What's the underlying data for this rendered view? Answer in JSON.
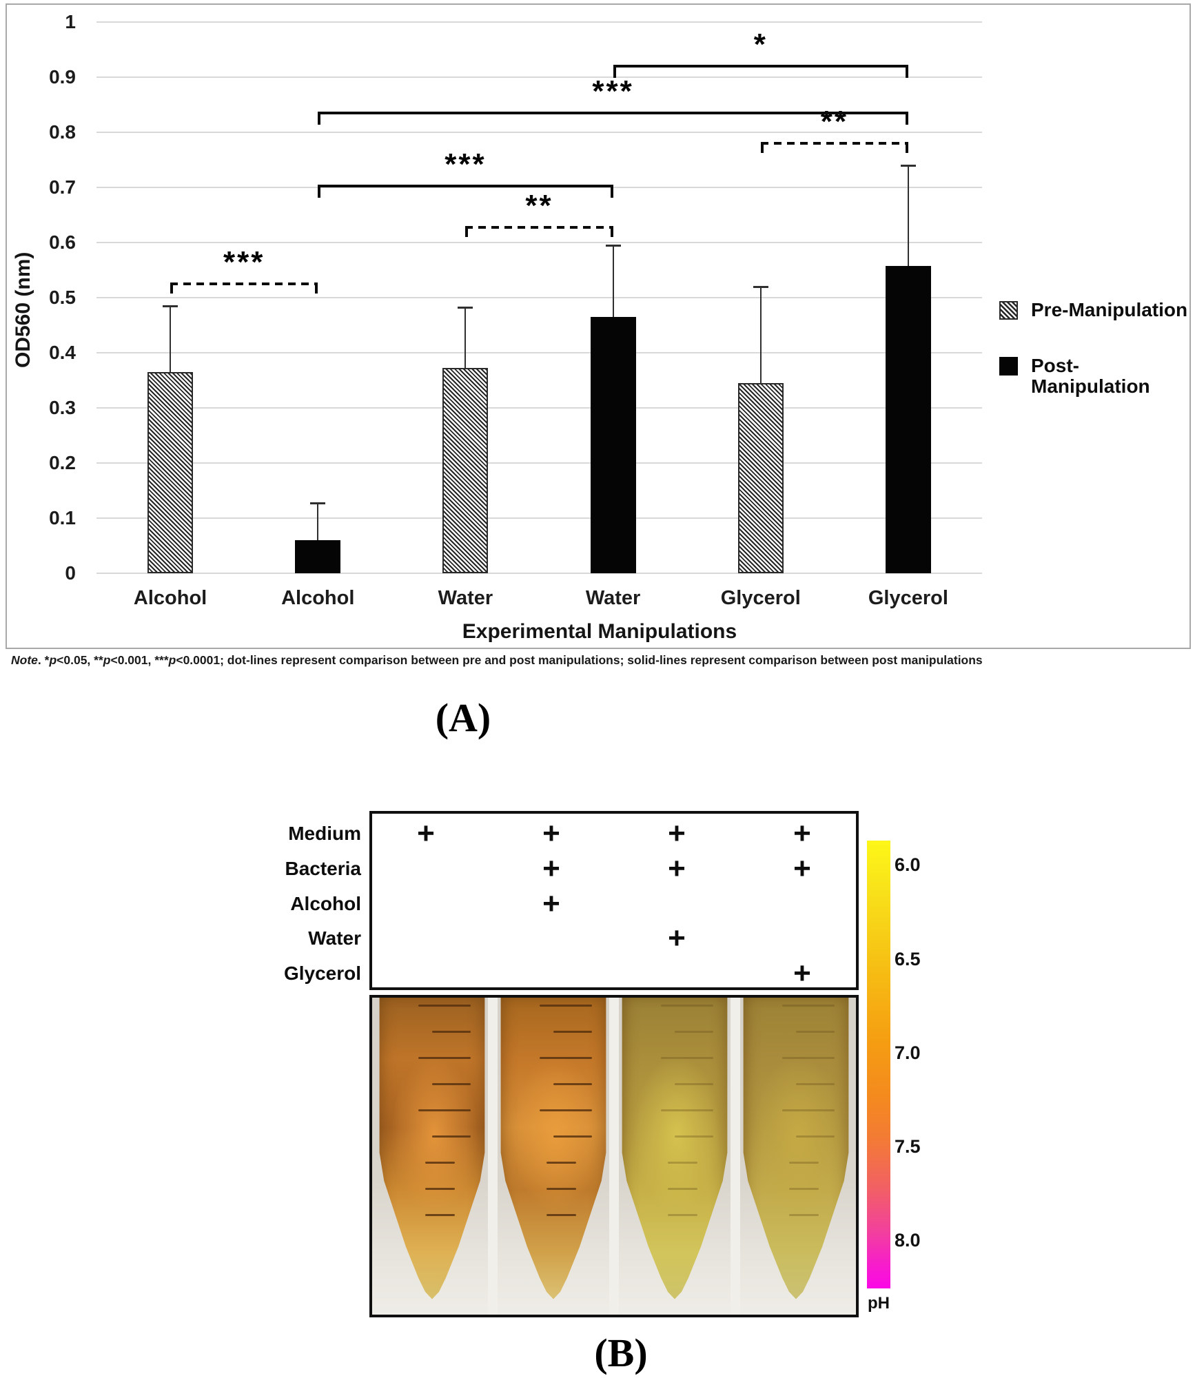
{
  "figure": {
    "panel_a_label": "(A)",
    "panel_b_label": "(B)"
  },
  "note": {
    "parts": [
      {
        "t": "Note",
        "i": true
      },
      {
        "t": ". *",
        "i": false
      },
      {
        "t": "p",
        "i": true
      },
      {
        "t": "<0.05, **",
        "i": false
      },
      {
        "t": "p",
        "i": true
      },
      {
        "t": "<0.001, ***",
        "i": false
      },
      {
        "t": "p",
        "i": true
      },
      {
        "t": "<0.0001; dot-lines represent comparison between pre and post manipulations; solid-lines represent comparison between post manipulations",
        "i": false
      }
    ]
  },
  "chart_data": {
    "type": "bar",
    "title": "",
    "xlabel": "Experimental Manipulations",
    "ylabel": "OD560 (nm)",
    "ylim": [
      0,
      1
    ],
    "ytick_step": 0.1,
    "ytick_labels": [
      "0",
      "0.1",
      "0.2",
      "0.3",
      "0.4",
      "0.5",
      "0.6",
      "0.7",
      "0.8",
      "0.9",
      "1"
    ],
    "grid": "horizontal",
    "legend_position": "right",
    "categories": [
      "Alcohol",
      "Alcohol",
      "Water",
      "Water",
      "Glycerol",
      "Glycerol"
    ],
    "bars": [
      {
        "category": "Alcohol",
        "group": "Pre-Manipulation",
        "value": 0.365,
        "error_top": 0.485
      },
      {
        "category": "Alcohol",
        "group": "Post-Manipulation",
        "value": 0.06,
        "error_top": 0.128
      },
      {
        "category": "Water",
        "group": "Pre-Manipulation",
        "value": 0.372,
        "error_top": 0.482
      },
      {
        "category": "Water",
        "group": "Post-Manipulation",
        "value": 0.465,
        "error_top": 0.595
      },
      {
        "category": "Glycerol",
        "group": "Pre-Manipulation",
        "value": 0.345,
        "error_top": 0.52
      },
      {
        "category": "Glycerol",
        "group": "Post-Manipulation",
        "value": 0.558,
        "error_top": 0.74
      }
    ],
    "significance_brackets": [
      {
        "from_bar": 0,
        "to_bar": 1,
        "height": 0.528,
        "style": "dashed",
        "label": "***"
      },
      {
        "from_bar": 2,
        "to_bar": 3,
        "height": 0.63,
        "style": "dashed",
        "label": "**"
      },
      {
        "from_bar": 4,
        "to_bar": 5,
        "height": 0.782,
        "style": "dashed",
        "label": "**"
      },
      {
        "from_bar": 1,
        "to_bar": 3,
        "height": 0.705,
        "style": "solid",
        "label": "***"
      },
      {
        "from_bar": 1,
        "to_bar": 5,
        "height": 0.838,
        "style": "solid",
        "label": "***"
      },
      {
        "from_bar": 3,
        "to_bar": 5,
        "height": 0.922,
        "style": "solid",
        "label": "*"
      }
    ],
    "legend": [
      {
        "label": "Pre-Manipulation",
        "style": "hatch"
      },
      {
        "label": "Post-Manipulation",
        "style": "solid"
      }
    ],
    "colors": {
      "bar_post": "#050505",
      "hatch_line": "#242424",
      "gridline": "#d9d9d9",
      "panel_border": "#a8a8a8"
    }
  },
  "panel_b": {
    "condition_table": {
      "row_labels": [
        "Medium",
        "Bacteria",
        "Alcohol",
        "Water",
        "Glycerol"
      ],
      "columns": 4,
      "plus_symbol": "+",
      "plus_marks": [
        [
          1,
          1,
          1,
          1
        ],
        [
          0,
          1,
          1,
          1
        ],
        [
          0,
          1,
          0,
          0
        ],
        [
          0,
          0,
          1,
          0
        ],
        [
          0,
          0,
          0,
          1
        ]
      ]
    },
    "tubes": [
      {
        "name": "medium-only",
        "ticks": "dark",
        "streak": "#f2a040",
        "colors": [
          "#9b6121",
          "#bf7529",
          "#aa6523",
          "#cd8a32",
          "#dfb154",
          "#d8bf69"
        ]
      },
      {
        "name": "bacteria-alcohol",
        "ticks": "dark",
        "streak": "#efa03d",
        "colors": [
          "#a5671f",
          "#c47829",
          "#d68f38",
          "#bf7b2c",
          "#d1a14a",
          "#dbc071"
        ]
      },
      {
        "name": "bacteria-water",
        "ticks": "faint",
        "streak": "#dccb52",
        "colors": [
          "#998035",
          "#aa8e3b",
          "#b79d40",
          "#c6b047",
          "#d2c55b",
          "#cec369"
        ]
      },
      {
        "name": "bacteria-glycerol",
        "ticks": "faint",
        "streak": "#c9ad45",
        "colors": [
          "#9b8135",
          "#a98c3c",
          "#b49941",
          "#c2aa4a",
          "#cabc5e",
          "#cbc172"
        ]
      }
    ],
    "ph_scale": {
      "tick_labels": [
        "6.0",
        "6.5",
        "7.0",
        "7.5",
        "8.0"
      ],
      "axis_label": "pH",
      "top_color": "#fdf718",
      "mid_color": "#f59d12",
      "bottom_color": "#fb08e6"
    }
  }
}
